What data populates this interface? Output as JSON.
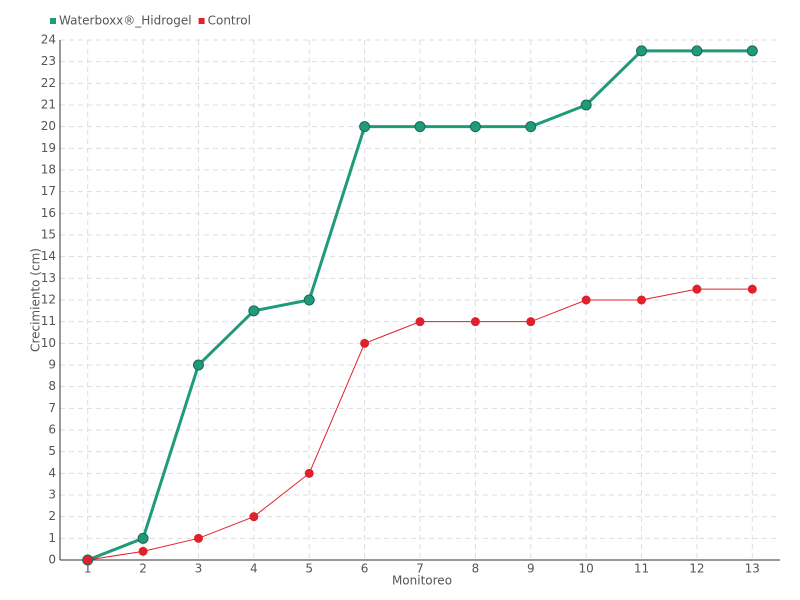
{
  "chart_data": {
    "type": "line",
    "x_label": "Monitoreo",
    "y_label": "Crecimiento (cm)",
    "categories": [
      "1",
      "2",
      "3",
      "4",
      "5",
      "6",
      "7",
      "8",
      "9",
      "10",
      "11",
      "12",
      "13"
    ],
    "series": [
      {
        "name": "Waterboxx®_Hidrogel",
        "color": "#1f9a7a",
        "values": [
          0,
          1,
          9,
          11.5,
          12,
          20,
          20,
          20,
          20,
          21,
          23.5,
          23.5,
          23.5
        ]
      },
      {
        "name": "Control",
        "color": "#e0202a",
        "values": [
          0,
          0.4,
          1,
          2,
          4,
          10,
          11,
          11,
          11,
          12,
          12,
          12.5,
          12.5
        ]
      }
    ],
    "ylim": [
      0,
      24
    ],
    "yticks": [
      0,
      1,
      2,
      3,
      4,
      5,
      6,
      7,
      8,
      9,
      10,
      11,
      12,
      13,
      14,
      15,
      16,
      17,
      18,
      19,
      20,
      21,
      22,
      23,
      24
    ],
    "grid": true,
    "legend": "top-left"
  }
}
